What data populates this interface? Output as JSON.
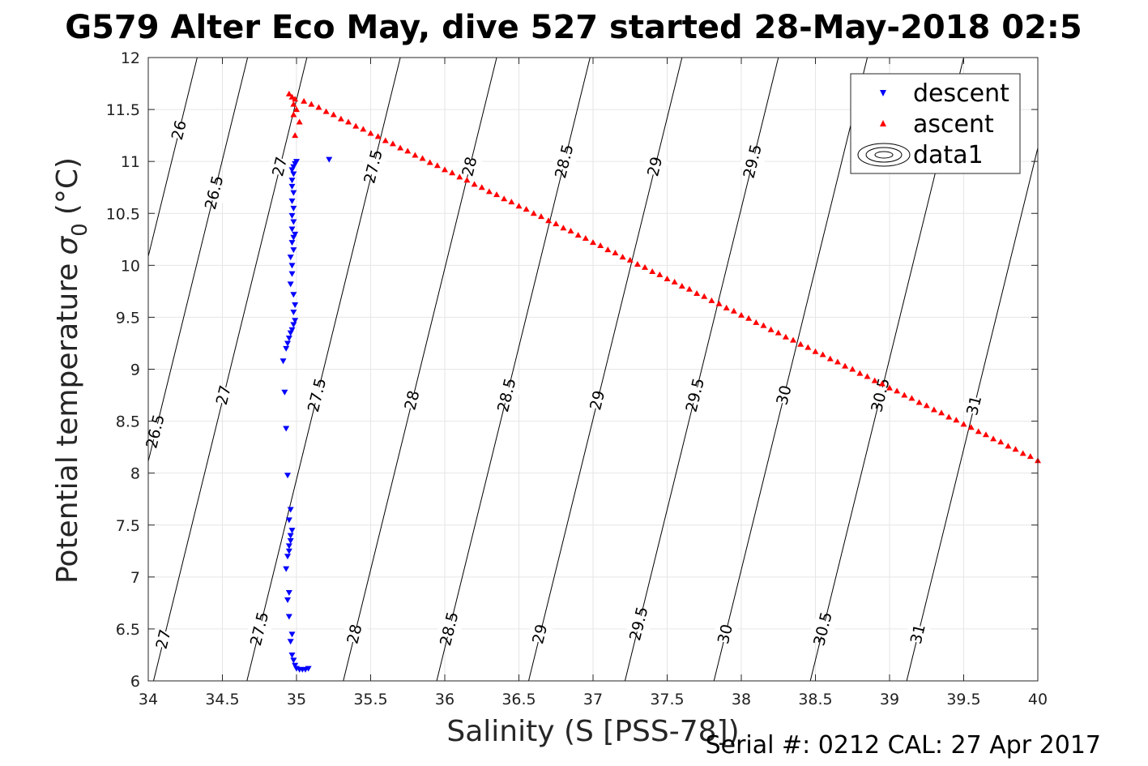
{
  "title": "G579 Alter Eco May, dive 527 started 28-May-2018 02:5",
  "footer": "Serial #: 0212  CAL: 27 Apr 2017",
  "colors": {
    "descent": "#0000ff",
    "ascent": "#ff0000",
    "grid": "#e6e6e6",
    "contour": "#000000"
  },
  "chart_data": {
    "type": "scatter",
    "xlabel": "Salinity (S [PSS-78])",
    "ylabel": "Potential temperature",
    "ylabel_symbol": "σ",
    "ylabel_subscript": "0",
    "ylabel_unit": "(°C)",
    "xlim": [
      34,
      40
    ],
    "ylim": [
      6,
      12
    ],
    "xticks": [
      "34",
      "34.5",
      "35",
      "35.5",
      "36",
      "36.5",
      "37",
      "37.5",
      "38",
      "38.5",
      "39",
      "39.5",
      "40"
    ],
    "yticks": [
      "6",
      "6.5",
      "7",
      "7.5",
      "8",
      "8.5",
      "9",
      "9.5",
      "10",
      "10.5",
      "11",
      "11.5",
      "12"
    ],
    "grid": true,
    "legend_position": "top-right",
    "legend": [
      "descent",
      "ascent",
      "data1"
    ],
    "series": [
      {
        "name": "descent",
        "marker": "triangle-down",
        "points": [
          [
            35.0,
            11.0
          ],
          [
            34.99,
            10.98
          ],
          [
            34.98,
            10.95
          ],
          [
            34.97,
            10.92
          ],
          [
            34.98,
            10.88
          ],
          [
            34.97,
            10.82
          ],
          [
            34.97,
            10.76
          ],
          [
            34.98,
            10.7
          ],
          [
            34.97,
            10.62
          ],
          [
            34.98,
            10.55
          ],
          [
            34.97,
            10.48
          ],
          [
            34.98,
            10.42
          ],
          [
            34.97,
            10.35
          ],
          [
            34.99,
            10.3
          ],
          [
            34.98,
            10.27
          ],
          [
            34.97,
            10.22
          ],
          [
            34.98,
            10.15
          ],
          [
            34.96,
            10.08
          ],
          [
            34.97,
            10.0
          ],
          [
            34.97,
            9.92
          ],
          [
            34.96,
            9.82
          ],
          [
            34.98,
            9.72
          ],
          [
            34.99,
            9.62
          ],
          [
            34.98,
            9.55
          ],
          [
            34.99,
            9.47
          ],
          [
            34.98,
            9.43
          ],
          [
            34.97,
            9.38
          ],
          [
            34.96,
            9.35
          ],
          [
            34.95,
            9.3
          ],
          [
            34.94,
            9.25
          ],
          [
            34.93,
            9.2
          ],
          [
            34.91,
            9.08
          ],
          [
            35.22,
            11.02
          ],
          [
            34.92,
            8.78
          ],
          [
            34.93,
            8.43
          ],
          [
            34.94,
            7.98
          ],
          [
            34.96,
            7.65
          ],
          [
            34.95,
            7.55
          ],
          [
            34.97,
            7.45
          ],
          [
            34.96,
            7.4
          ],
          [
            34.96,
            7.35
          ],
          [
            34.95,
            7.3
          ],
          [
            34.95,
            7.25
          ],
          [
            34.94,
            7.2
          ],
          [
            34.93,
            7.08
          ],
          [
            34.95,
            6.85
          ],
          [
            34.94,
            6.78
          ],
          [
            34.95,
            6.62
          ],
          [
            34.97,
            6.45
          ],
          [
            34.96,
            6.38
          ],
          [
            34.97,
            6.25
          ],
          [
            34.98,
            6.2
          ],
          [
            34.99,
            6.15
          ],
          [
            35.0,
            6.12
          ],
          [
            35.02,
            6.11
          ],
          [
            35.04,
            6.11
          ],
          [
            35.06,
            6.11
          ],
          [
            35.08,
            6.12
          ]
        ]
      },
      {
        "name": "ascent",
        "marker": "triangle-up",
        "points": [
          [
            34.95,
            11.65
          ],
          [
            34.97,
            11.62
          ],
          [
            34.99,
            11.6
          ],
          [
            34.98,
            11.55
          ],
          [
            35.0,
            11.5
          ],
          [
            34.98,
            11.45
          ],
          [
            35.02,
            11.38
          ],
          [
            34.99,
            11.25
          ],
          [
            35.05,
            11.58
          ],
          [
            35.1,
            11.55
          ],
          [
            35.15,
            11.52
          ],
          [
            35.2,
            11.48
          ],
          [
            35.25,
            11.45
          ],
          [
            35.3,
            11.41
          ],
          [
            35.35,
            11.38
          ],
          [
            35.4,
            11.34
          ],
          [
            35.45,
            11.31
          ],
          [
            35.5,
            11.27
          ],
          [
            35.55,
            11.24
          ],
          [
            35.6,
            11.2
          ],
          [
            35.65,
            11.17
          ],
          [
            35.7,
            11.13
          ],
          [
            35.75,
            11.1
          ],
          [
            35.8,
            11.06
          ],
          [
            35.85,
            11.03
          ],
          [
            35.9,
            10.99
          ],
          [
            35.95,
            10.96
          ],
          [
            36.0,
            10.92
          ],
          [
            36.05,
            10.89
          ],
          [
            36.1,
            10.85
          ],
          [
            36.15,
            10.82
          ],
          [
            36.2,
            10.78
          ],
          [
            36.25,
            10.75
          ],
          [
            36.3,
            10.71
          ],
          [
            36.35,
            10.68
          ],
          [
            36.4,
            10.64
          ],
          [
            36.45,
            10.61
          ],
          [
            36.5,
            10.57
          ],
          [
            36.55,
            10.54
          ],
          [
            36.6,
            10.5
          ],
          [
            36.65,
            10.47
          ],
          [
            36.7,
            10.43
          ],
          [
            36.75,
            10.4
          ],
          [
            36.8,
            10.36
          ],
          [
            36.85,
            10.33
          ],
          [
            36.9,
            10.29
          ],
          [
            36.95,
            10.26
          ],
          [
            37.0,
            10.22
          ],
          [
            37.05,
            10.19
          ],
          [
            37.1,
            10.15
          ],
          [
            37.15,
            10.12
          ],
          [
            37.2,
            10.08
          ],
          [
            37.25,
            10.05
          ],
          [
            37.3,
            10.01
          ],
          [
            37.35,
            9.98
          ],
          [
            37.4,
            9.94
          ],
          [
            37.45,
            9.91
          ],
          [
            37.5,
            9.87
          ],
          [
            37.55,
            9.84
          ],
          [
            37.6,
            9.8
          ],
          [
            37.65,
            9.77
          ],
          [
            37.7,
            9.73
          ],
          [
            37.75,
            9.7
          ],
          [
            37.8,
            9.66
          ],
          [
            37.85,
            9.63
          ],
          [
            37.9,
            9.59
          ],
          [
            37.95,
            9.56
          ],
          [
            38.0,
            9.52
          ],
          [
            38.05,
            9.49
          ],
          [
            38.1,
            9.45
          ],
          [
            38.15,
            9.42
          ],
          [
            38.2,
            9.38
          ],
          [
            38.25,
            9.35
          ],
          [
            38.3,
            9.31
          ],
          [
            38.35,
            9.28
          ],
          [
            38.4,
            9.24
          ],
          [
            38.45,
            9.21
          ],
          [
            38.5,
            9.17
          ],
          [
            38.55,
            9.14
          ],
          [
            38.6,
            9.1
          ],
          [
            38.65,
            9.07
          ],
          [
            38.7,
            9.03
          ],
          [
            38.75,
            9.0
          ],
          [
            38.8,
            8.96
          ],
          [
            38.85,
            8.93
          ],
          [
            38.9,
            8.89
          ],
          [
            38.95,
            8.86
          ],
          [
            39.0,
            8.82
          ],
          [
            39.05,
            8.79
          ],
          [
            39.1,
            8.75
          ],
          [
            39.15,
            8.72
          ],
          [
            39.2,
            8.68
          ],
          [
            39.25,
            8.65
          ],
          [
            39.3,
            8.61
          ],
          [
            39.35,
            8.58
          ],
          [
            39.4,
            8.54
          ],
          [
            39.45,
            8.51
          ],
          [
            39.5,
            8.47
          ],
          [
            39.55,
            8.44
          ],
          [
            39.6,
            8.4
          ],
          [
            39.65,
            8.37
          ],
          [
            39.7,
            8.33
          ],
          [
            39.75,
            8.3
          ],
          [
            39.8,
            8.26
          ],
          [
            39.85,
            8.23
          ],
          [
            39.9,
            8.19
          ],
          [
            39.95,
            8.16
          ],
          [
            40.0,
            8.12
          ]
        ]
      }
    ],
    "density_contours": {
      "name": "data1",
      "slope_dT_dS": 5.8,
      "lines": [
        {
          "level": "26",
          "S_at_T12": 34.33,
          "labels": [
            {
              "text": "26",
              "T": 11.3
            }
          ]
        },
        {
          "level": "26.5",
          "S_at_T12": 34.67,
          "labels": [
            {
              "text": "26.5",
              "T": 10.7
            },
            {
              "text": "26.5",
              "T": 8.4
            }
          ]
        },
        {
          "level": "27",
          "S_at_T12": 35.07,
          "labels": [
            {
              "text": "27",
              "T": 10.95
            },
            {
              "text": "27",
              "T": 8.75
            },
            {
              "text": "27",
              "T": 6.4
            }
          ]
        },
        {
          "level": "27.5",
          "S_at_T12": 35.7,
          "labels": [
            {
              "text": "27.5",
              "T": 10.95
            },
            {
              "text": "27.5",
              "T": 8.75
            },
            {
              "text": "27.5",
              "T": 6.5
            }
          ]
        },
        {
          "level": "28",
          "S_at_T12": 36.35,
          "labels": [
            {
              "text": "28",
              "T": 10.95
            },
            {
              "text": "28",
              "T": 8.7
            },
            {
              "text": "28",
              "T": 6.45
            }
          ]
        },
        {
          "level": "28.5",
          "S_at_T12": 36.98,
          "labels": [
            {
              "text": "28.5",
              "T": 11.0
            },
            {
              "text": "28.5",
              "T": 8.75
            },
            {
              "text": "28.5",
              "T": 6.5
            }
          ]
        },
        {
          "level": "29",
          "S_at_T12": 37.6,
          "labels": [
            {
              "text": "29",
              "T": 10.95
            },
            {
              "text": "29",
              "T": 8.7
            },
            {
              "text": "29",
              "T": 6.45
            }
          ]
        },
        {
          "level": "29.5",
          "S_at_T12": 38.25,
          "labels": [
            {
              "text": "29.5",
              "T": 11.0
            },
            {
              "text": "29.5",
              "T": 8.75
            },
            {
              "text": "29.5",
              "T": 6.55
            }
          ]
        },
        {
          "level": "30",
          "S_at_T12": 38.85,
          "labels": [
            {
              "text": "30",
              "T": 8.75
            },
            {
              "text": "30",
              "T": 6.45
            }
          ]
        },
        {
          "level": "30.5",
          "S_at_T12": 39.5,
          "labels": [
            {
              "text": "30.5",
              "T": 8.75
            },
            {
              "text": "30.5",
              "T": 6.5
            }
          ]
        },
        {
          "level": "31",
          "S_at_T12": 40.15,
          "labels": [
            {
              "text": "31",
              "T": 8.65
            },
            {
              "text": "31",
              "T": 6.45
            }
          ]
        }
      ]
    }
  }
}
